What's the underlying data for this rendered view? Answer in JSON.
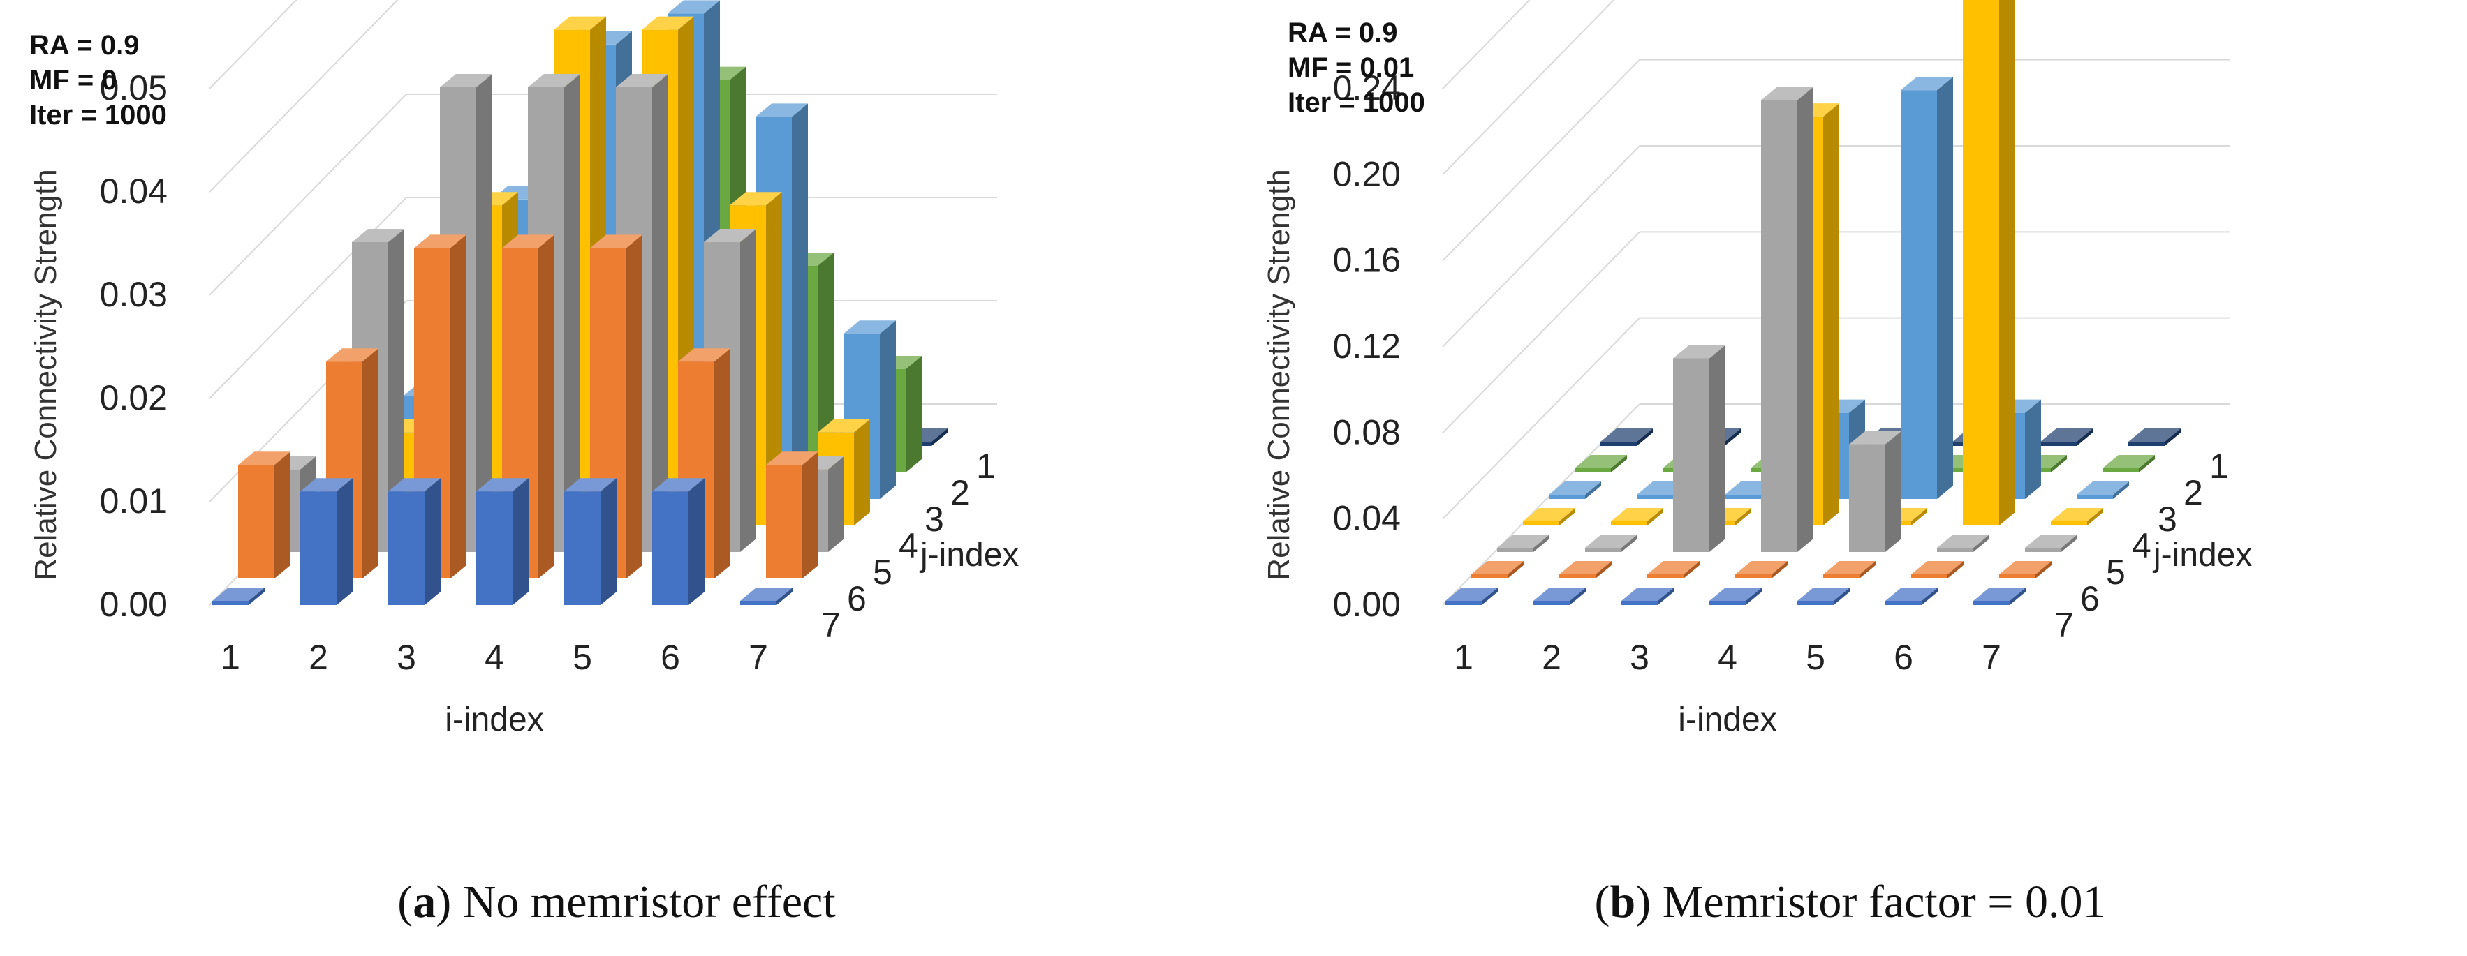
{
  "colors": {
    "j1": "#1f3f6e",
    "j2": "#6aa842",
    "j3": "#5b9bd5",
    "j4": "#ffc000",
    "j5": "#a5a5a5",
    "j6": "#ed7d31",
    "j7": "#4472c4",
    "grid": "#d9d9d9"
  },
  "chart_data": [
    {
      "type": "bar3d",
      "params": [
        "RA = 0.9",
        "MF = 0",
        "Iter = 1000"
      ],
      "caption_letter": "a",
      "caption_text": ") No memristor effect",
      "ylabel": "Relative Connectivity Strength",
      "xlabel": "i-index",
      "zlabel": "j-index",
      "ylim": [
        0,
        0.05
      ],
      "yticks": [
        "0.00",
        "0.01",
        "0.02",
        "0.03",
        "0.04",
        "0.05"
      ],
      "x_categories": [
        "1",
        "2",
        "3",
        "4",
        "5",
        "6",
        "7"
      ],
      "z_categories": [
        "1",
        "2",
        "3",
        "4",
        "5",
        "6",
        "7"
      ],
      "series": [
        {
          "name": "1",
          "values": [
            0,
            0,
            0,
            0.009,
            0,
            0,
            0
          ]
        },
        {
          "name": "2",
          "values": [
            0,
            0,
            0.01,
            0.025,
            0.038,
            0.02,
            0.01
          ]
        },
        {
          "name": "3",
          "values": [
            0,
            0.01,
            0.029,
            0.044,
            0.047,
            0.037,
            0.016
          ]
        },
        {
          "name": "4",
          "values": [
            0,
            0.009,
            0.031,
            0.048,
            0.048,
            0.031,
            0.009
          ]
        },
        {
          "name": "5",
          "values": [
            0.008,
            0.03,
            0.045,
            0.045,
            0.045,
            0.03,
            0.008
          ]
        },
        {
          "name": "6",
          "values": [
            0.011,
            0.021,
            0.032,
            0.032,
            0.032,
            0.021,
            0.011
          ]
        },
        {
          "name": "7",
          "values": [
            0,
            0.011,
            0.011,
            0.011,
            0.011,
            0.011,
            0
          ]
        }
      ]
    },
    {
      "type": "bar3d",
      "params": [
        "RA = 0.9",
        "MF = 0.01",
        "Iter = 1000"
      ],
      "caption_letter": "b",
      "caption_text": ") Memristor factor = 0.01",
      "ylabel": "Relative Connectivity Strength",
      "xlabel": "i-index",
      "zlabel": "j-index",
      "ylim": [
        0,
        0.24
      ],
      "yticks": [
        "0.00",
        "0.04",
        "0.08",
        "0.12",
        "0.16",
        "0.20",
        "0.24"
      ],
      "x_categories": [
        "1",
        "2",
        "3",
        "4",
        "5",
        "6",
        "7"
      ],
      "z_categories": [
        "1",
        "2",
        "3",
        "4",
        "5",
        "6",
        "7"
      ],
      "series": [
        {
          "name": "1",
          "values": [
            0,
            0,
            0,
            0,
            0,
            0,
            0
          ]
        },
        {
          "name": "2",
          "values": [
            0,
            0,
            0,
            0,
            0,
            0,
            0
          ]
        },
        {
          "name": "3",
          "values": [
            0,
            0,
            0,
            0.04,
            0.19,
            0.04,
            0
          ]
        },
        {
          "name": "4",
          "values": [
            0,
            0,
            0,
            0.19,
            0,
            0.25,
            0
          ]
        },
        {
          "name": "5",
          "values": [
            0,
            0,
            0.09,
            0.21,
            0.05,
            0,
            0
          ]
        },
        {
          "name": "6",
          "values": [
            0,
            0,
            0,
            0,
            0,
            0,
            0
          ]
        },
        {
          "name": "7",
          "values": [
            0,
            0,
            0,
            0,
            0,
            0,
            0
          ]
        }
      ]
    }
  ]
}
